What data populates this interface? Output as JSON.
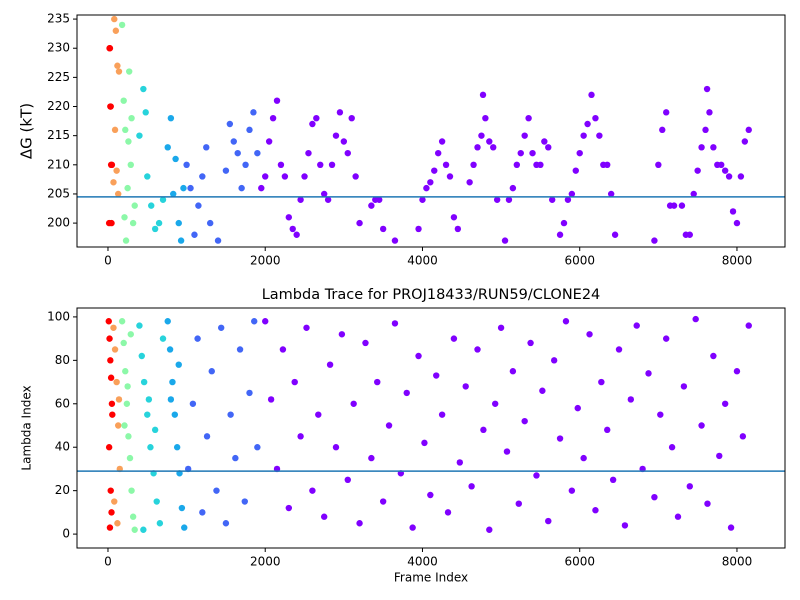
{
  "chart_data": [
    {
      "type": "scatter",
      "ylabel": "ΔG (kT)",
      "xlim": [
        -394,
        8611
      ],
      "ylim": [
        195.9,
        235.7
      ],
      "xticks": [
        0,
        2000,
        4000,
        6000,
        8000
      ],
      "yticks": [
        200,
        205,
        210,
        215,
        220,
        225,
        230,
        235
      ],
      "hline": {
        "value": 204.5,
        "color": "#1f77b4"
      },
      "series": [
        {
          "color": "#ff0000",
          "x": [
            20,
            30,
            40,
            15,
            25,
            35,
            50,
            45
          ],
          "values": [
            230,
            220,
            210,
            200,
            230,
            220,
            210,
            200
          ]
        },
        {
          "color": "#f9a05a",
          "x": [
            80,
            100,
            120,
            90,
            110,
            130,
            70,
            140
          ],
          "values": [
            235,
            233,
            227,
            216,
            209,
            205,
            207,
            226
          ]
        },
        {
          "color": "#8cf8a8",
          "x": [
            180,
            200,
            220,
            250,
            270,
            300,
            320,
            230,
            260,
            290,
            340,
            210
          ],
          "values": [
            234,
            221,
            216,
            206,
            226,
            218,
            200,
            197,
            214,
            210,
            203,
            201
          ]
        },
        {
          "color": "#27d3db",
          "x": [
            400,
            450,
            480,
            500,
            550,
            600,
            650,
            700
          ],
          "values": [
            215,
            223,
            219,
            208,
            203,
            199,
            200,
            204
          ]
        },
        {
          "color": "#1aa8ea",
          "x": [
            760,
            800,
            830,
            860,
            900,
            930,
            960
          ],
          "values": [
            213,
            218,
            205,
            211,
            200,
            197,
            206
          ]
        },
        {
          "color": "#4266f6",
          "x": [
            1000,
            1050,
            1100,
            1150,
            1200,
            1250,
            1300,
            1400,
            1500,
            1550,
            1600,
            1650,
            1700,
            1750,
            1800,
            1850,
            1900
          ],
          "values": [
            210,
            206,
            198,
            203,
            208,
            213,
            200,
            197,
            209,
            217,
            214,
            212,
            206,
            210,
            216,
            219,
            212
          ]
        },
        {
          "color": "#8000ff",
          "x": [
            1950,
            2000,
            2050,
            2100,
            2150,
            2200,
            2250,
            2300,
            2350,
            2400,
            2450,
            2500,
            2550,
            2600,
            2650,
            2700,
            2750,
            2800,
            2850,
            2900,
            2950,
            3000,
            3050,
            3100,
            3150,
            3200,
            3350,
            3400,
            3450,
            3500,
            3650,
            3950,
            4000,
            4050,
            4100,
            4150,
            4200,
            4250,
            4300,
            4350,
            4400,
            4450,
            4600,
            4650,
            4700,
            4750,
            4770,
            4800,
            4850,
            4900,
            4950,
            5050,
            5100,
            5150,
            5200,
            5250,
            5300,
            5350,
            5400,
            5450,
            5500,
            5550,
            5600,
            5650,
            5750,
            5800,
            5850,
            5900,
            5950,
            6000,
            6050,
            6100,
            6150,
            6200,
            6250,
            6300,
            6350,
            6400,
            6450,
            6950,
            7000,
            7050,
            7100,
            7150,
            7200,
            7300,
            7350,
            7400,
            7450,
            7500,
            7550,
            7600,
            7620,
            7650,
            7700,
            7750,
            7800,
            7850,
            7900,
            7950,
            8000,
            8050,
            8100,
            8150
          ],
          "values": [
            206,
            208,
            214,
            218,
            221,
            210,
            208,
            201,
            199,
            198,
            204,
            208,
            212,
            217,
            218,
            210,
            205,
            204,
            210,
            215,
            219,
            214,
            212,
            218,
            208,
            200,
            203,
            204,
            204,
            199,
            197,
            199,
            204,
            206,
            207,
            209,
            212,
            214,
            210,
            208,
            201,
            199,
            207,
            210,
            213,
            215,
            222,
            218,
            214,
            213,
            204,
            197,
            204,
            206,
            210,
            212,
            215,
            218,
            212,
            210,
            210,
            214,
            213,
            204,
            198,
            200,
            204,
            205,
            209,
            212,
            215,
            217,
            222,
            218,
            215,
            210,
            210,
            205,
            198,
            197,
            210,
            216,
            219,
            203,
            203,
            203,
            198,
            198,
            205,
            209,
            213,
            216,
            223,
            219,
            213,
            210,
            210,
            209,
            208,
            202,
            200,
            208,
            214,
            216
          ]
        }
      ]
    },
    {
      "type": "scatter",
      "title": "Lambda Trace for PROJ18433/RUN59/CLONE24",
      "xlabel": "Frame Index",
      "ylabel": "Lambda Index",
      "xlim": [
        -394,
        8611
      ],
      "ylim": [
        -6.4,
        104.1
      ],
      "xticks": [
        0,
        2000,
        4000,
        6000,
        8000
      ],
      "yticks": [
        0,
        20,
        40,
        60,
        80,
        100
      ],
      "hline": {
        "value": 29,
        "color": "#1f77b4"
      },
      "series": [
        {
          "color": "#ff0000",
          "x": [
            10,
            20,
            30,
            40,
            50,
            15,
            35,
            45,
            25,
            55
          ],
          "values": [
            98,
            90,
            80,
            72,
            60,
            40,
            20,
            10,
            3,
            55
          ]
        },
        {
          "color": "#f9a05a",
          "x": [
            70,
            90,
            110,
            130,
            150,
            80,
            120,
            140
          ],
          "values": [
            95,
            85,
            70,
            50,
            30,
            15,
            5,
            62
          ]
        },
        {
          "color": "#8cf8a8",
          "x": [
            180,
            200,
            220,
            240,
            260,
            280,
            300,
            320,
            340,
            210,
            250,
            290
          ],
          "values": [
            98,
            88,
            75,
            60,
            45,
            35,
            20,
            8,
            2,
            50,
            68,
            92
          ]
        },
        {
          "color": "#27d3db",
          "x": [
            400,
            430,
            460,
            500,
            540,
            580,
            620,
            660,
            700,
            450,
            520,
            600
          ],
          "values": [
            96,
            82,
            70,
            55,
            40,
            28,
            15,
            5,
            90,
            2,
            62,
            48
          ]
        },
        {
          "color": "#1aa8ea",
          "x": [
            760,
            790,
            820,
            850,
            880,
            910,
            940,
            970,
            800,
            900
          ],
          "values": [
            98,
            85,
            70,
            55,
            40,
            28,
            12,
            3,
            62,
            78
          ]
        },
        {
          "color": "#4266f6",
          "x": [
            1020,
            1080,
            1140,
            1200,
            1260,
            1320,
            1380,
            1440,
            1500,
            1560,
            1620,
            1680,
            1740,
            1800,
            1860,
            1900
          ],
          "values": [
            30,
            60,
            90,
            10,
            45,
            75,
            20,
            95,
            5,
            55,
            35,
            85,
            15,
            65,
            98,
            40
          ]
        },
        {
          "color": "#8000ff",
          "x": [
            2000,
            2075,
            2150,
            2225,
            2300,
            2375,
            2450,
            2525,
            2600,
            2675,
            2750,
            2825,
            2900,
            2975,
            3050,
            3125,
            3200,
            3275,
            3350,
            3425,
            3500,
            3575,
            3650,
            3725,
            3800,
            3875,
            3950,
            4025,
            4100,
            4175,
            4250,
            4325,
            4400,
            4475,
            4550,
            4625,
            4700,
            4775,
            4850,
            4925,
            5000,
            5075,
            5150,
            5225,
            5300,
            5375,
            5450,
            5525,
            5600,
            5675,
            5750,
            5825,
            5900,
            5975,
            6050,
            6125,
            6200,
            6275,
            6350,
            6425,
            6500,
            6575,
            6650,
            6725,
            6800,
            6875,
            6950,
            7025,
            7100,
            7175,
            7250,
            7325,
            7400,
            7475,
            7550,
            7625,
            7700,
            7775,
            7850,
            7925,
            8000,
            8075,
            8150
          ],
          "values": [
            98,
            62,
            30,
            85,
            12,
            70,
            45,
            95,
            20,
            55,
            8,
            78,
            40,
            92,
            25,
            60,
            5,
            88,
            35,
            70,
            15,
            50,
            97,
            28,
            65,
            3,
            82,
            42,
            18,
            73,
            55,
            10,
            90,
            33,
            68,
            22,
            85,
            48,
            2,
            60,
            95,
            38,
            75,
            14,
            52,
            88,
            27,
            66,
            6,
            80,
            44,
            98,
            20,
            58,
            35,
            92,
            11,
            70,
            48,
            25,
            85,
            4,
            62,
            96,
            30,
            74,
            17,
            55,
            90,
            40,
            8,
            68,
            22,
            99,
            50,
            14,
            82,
            36,
            60,
            3,
            75,
            45,
            96
          ]
        }
      ]
    }
  ]
}
